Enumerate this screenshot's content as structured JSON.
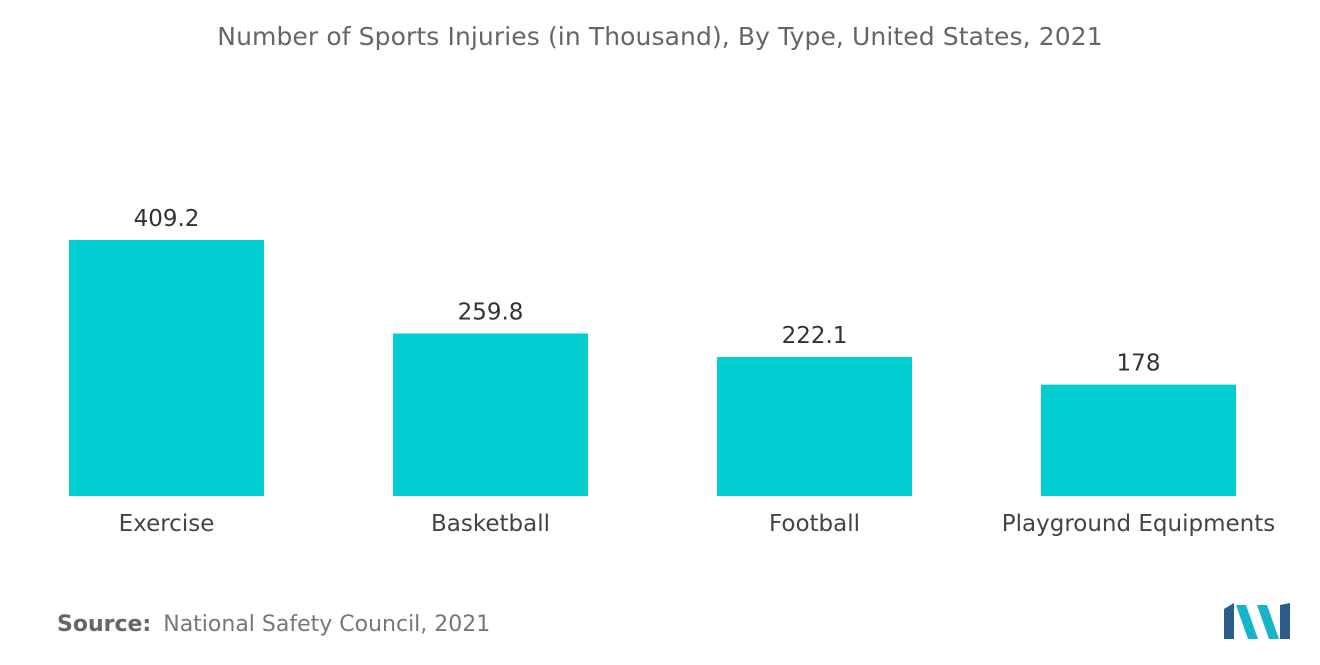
{
  "chart_data": {
    "type": "bar",
    "title": "Number of Sports Injuries (in Thousand), By Type, United States, 2021",
    "categories": [
      "Exercise",
      "Basketball",
      "Football",
      "Playground Equipments"
    ],
    "values": [
      409.2,
      259.8,
      222.1,
      178
    ],
    "value_labels": [
      "409.2",
      "259.8",
      "222.1",
      "178"
    ],
    "xlabel": "",
    "ylabel": "",
    "ylim": [
      0,
      409.2
    ],
    "grid": false,
    "legend": "none",
    "bar_color": "#00ced1"
  },
  "source": {
    "label": "Source:",
    "text": "National Safety Council, 2021"
  },
  "logo": {
    "icon": "mordor-intelligence-logo-icon",
    "colors": [
      "#2b5d8c",
      "#16b4c8"
    ]
  }
}
